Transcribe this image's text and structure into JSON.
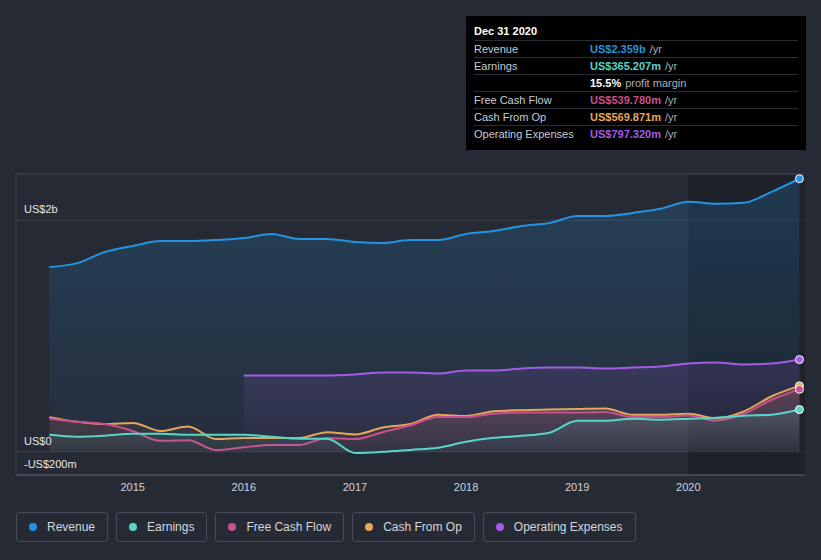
{
  "chart_data": {
    "type": "area",
    "x": [
      2014.25,
      2014.5,
      2014.75,
      2015,
      2015.25,
      2015.5,
      2015.75,
      2016,
      2016.25,
      2016.5,
      2016.75,
      2017,
      2017.25,
      2017.5,
      2017.75,
      2018,
      2018.25,
      2018.5,
      2018.75,
      2019,
      2019.25,
      2019.5,
      2019.75,
      2020,
      2020.25,
      2020.5,
      2020.75,
      2021
    ],
    "xlim": [
      2013.95,
      2021.05
    ],
    "xticks": [
      2015,
      2016,
      2017,
      2018,
      2019,
      2020
    ],
    "ylim": [
      -200,
      2400
    ],
    "yticks": [
      {
        "value": -200,
        "label": "-US$200m"
      },
      {
        "value": 0,
        "label": "US$0"
      },
      {
        "value": 2000,
        "label": "US$2b"
      }
    ],
    "grid": true,
    "legend": "bottom-left",
    "series": [
      {
        "name": "Revenue",
        "color": "#2394df",
        "values": [
          1596,
          1630,
          1726,
          1778,
          1821,
          1821,
          1830,
          1847,
          1882,
          1839,
          1839,
          1813,
          1804,
          1830,
          1830,
          1882,
          1908,
          1951,
          1977,
          2038,
          2038,
          2064,
          2099,
          2160,
          2142,
          2151,
          2246,
          2359
        ]
      },
      {
        "name": "Earnings",
        "color": "#58d5c9",
        "values": [
          147,
          130,
          139,
          156,
          156,
          147,
          147,
          147,
          130,
          113,
          113,
          -9,
          0,
          17,
          35,
          87,
          121,
          139,
          165,
          269,
          269,
          286,
          278,
          286,
          295,
          312,
          321,
          365
        ]
      },
      {
        "name": "Free Cash Flow",
        "color": "#c94f8e",
        "values": [
          286,
          260,
          240,
          180,
          95,
          100,
          15,
          40,
          60,
          60,
          120,
          110,
          170,
          230,
          300,
          300,
          330,
          340,
          340,
          340,
          345,
          300,
          300,
          315,
          270,
          330,
          450,
          540
        ]
      },
      {
        "name": "Cash From Op",
        "color": "#e5a65a",
        "values": [
          300,
          260,
          240,
          250,
          180,
          220,
          110,
          120,
          120,
          120,
          170,
          150,
          210,
          240,
          320,
          310,
          350,
          360,
          365,
          370,
          375,
          320,
          320,
          330,
          290,
          350,
          480,
          570
        ]
      },
      {
        "name": "Operating Expenses",
        "color": "#a35ce6",
        "values": [
          null,
          null,
          null,
          null,
          null,
          null,
          null,
          659,
          659,
          659,
          659,
          668,
          685,
          685,
          677,
          703,
          703,
          720,
          728,
          728,
          720,
          728,
          737,
          763,
          772,
          755,
          763,
          797
        ]
      }
    ],
    "annotations": [
      {
        "title": "Dec 31 2020",
        "rows": [
          {
            "label": "Revenue",
            "value": "US$2.359b",
            "unit": "/yr",
            "color": "#2394df"
          },
          {
            "label": "Earnings",
            "value": "US$365.207m",
            "unit": "/yr",
            "color": "#58d5c9"
          },
          {
            "value": "15.5%",
            "unit": "profit margin",
            "color": "#ffffff"
          },
          {
            "label": "Free Cash Flow",
            "value": "US$539.780m",
            "unit": "/yr",
            "color": "#c94f8e"
          },
          {
            "label": "Cash From Op",
            "value": "US$569.871m",
            "unit": "/yr",
            "color": "#e5a65a"
          },
          {
            "label": "Operating Expenses",
            "value": "US$797.320m",
            "unit": "/yr",
            "color": "#a35ce6"
          }
        ]
      },
      {
        "x_range": [
          2020,
          2021.05
        ]
      }
    ]
  }
}
